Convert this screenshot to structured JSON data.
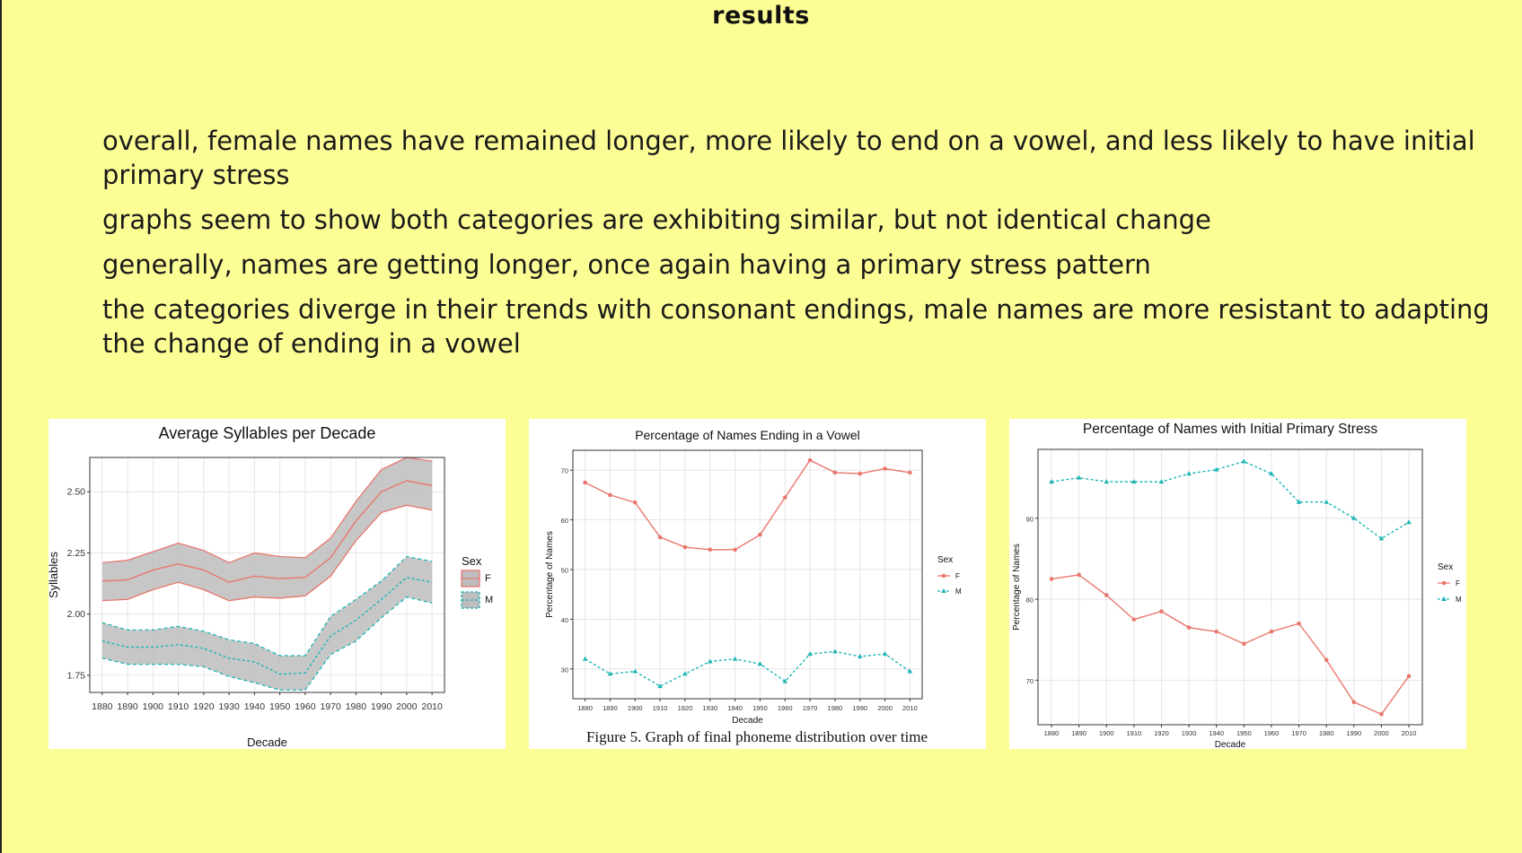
{
  "slide": {
    "title": "results",
    "bullets": [
      "overall, female names have remained longer, more likely to end on a vowel, and less likely to have initial primary stress",
      "graphs seem to show both categories are exhibiting similar, but not identical change",
      "generally, names are getting longer, once again having a primary stress pattern",
      "the categories diverge in their trends with consonant endings, male names are more resistant to adapting the change of ending in a vowel"
    ]
  },
  "colors": {
    "female": "#E8776E",
    "male": "#1EB5B5",
    "band": "#BDBDBD",
    "background": "#FDFD96"
  },
  "chart_data": [
    {
      "type": "line",
      "title": "Average Syllables per Decade",
      "xlabel": "Decade",
      "ylabel": "Syllables",
      "x": [
        1880,
        1890,
        1900,
        1910,
        1920,
        1930,
        1940,
        1950,
        1960,
        1970,
        1980,
        1990,
        2000,
        2010
      ],
      "ylim": [
        1.68,
        2.64
      ],
      "yticks": [
        1.75,
        2.0,
        2.25,
        2.5
      ],
      "ytick_labels": [
        "1.75",
        "2.00",
        "2.25",
        "2.50"
      ],
      "grid": true,
      "legend": {
        "title": "Sex",
        "position": "right"
      },
      "series": [
        {
          "name": "F",
          "style": "solid",
          "marker": "none",
          "values": [
            2.135,
            2.14,
            2.18,
            2.205,
            2.18,
            2.13,
            2.155,
            2.145,
            2.15,
            2.23,
            2.38,
            2.5,
            2.545,
            2.525
          ],
          "upper": [
            2.21,
            2.22,
            2.255,
            2.29,
            2.26,
            2.21,
            2.25,
            2.235,
            2.23,
            2.31,
            2.46,
            2.59,
            2.64,
            2.625
          ],
          "lower": [
            2.055,
            2.06,
            2.1,
            2.13,
            2.1,
            2.055,
            2.07,
            2.065,
            2.075,
            2.155,
            2.3,
            2.415,
            2.445,
            2.425
          ]
        },
        {
          "name": "M",
          "style": "dashed",
          "marker": "none",
          "values": [
            1.89,
            1.865,
            1.865,
            1.875,
            1.86,
            1.82,
            1.805,
            1.755,
            1.76,
            1.91,
            1.975,
            2.06,
            2.15,
            2.13
          ],
          "upper": [
            1.965,
            1.935,
            1.935,
            1.95,
            1.93,
            1.895,
            1.88,
            1.83,
            1.83,
            1.99,
            2.06,
            2.135,
            2.235,
            2.215
          ],
          "lower": [
            1.82,
            1.795,
            1.795,
            1.795,
            1.785,
            1.745,
            1.72,
            1.69,
            1.69,
            1.835,
            1.89,
            1.985,
            2.07,
            2.045
          ]
        }
      ]
    },
    {
      "type": "line",
      "title": "Percentage of Names Ending in a Vowel",
      "xlabel": "Decade",
      "ylabel": "Percentage of Names",
      "caption": "Figure 5. Graph of final phoneme distribution over time",
      "x": [
        1880,
        1890,
        1900,
        1910,
        1920,
        1930,
        1940,
        1950,
        1960,
        1970,
        1980,
        1990,
        2000,
        2010
      ],
      "ylim": [
        24,
        74
      ],
      "yticks": [
        30,
        40,
        50,
        60,
        70
      ],
      "ytick_labels": [
        "30",
        "40",
        "50",
        "60",
        "70"
      ],
      "grid": true,
      "legend": {
        "title": "Sex",
        "position": "right"
      },
      "series": [
        {
          "name": "F",
          "style": "solid",
          "marker": "circle",
          "values": [
            67.5,
            65,
            63.5,
            56.5,
            54.5,
            54,
            54,
            57,
            64.5,
            72,
            69.5,
            69.3,
            70.3,
            69.5
          ]
        },
        {
          "name": "M",
          "style": "dashed",
          "marker": "triangle",
          "values": [
            32,
            29,
            29.5,
            26.5,
            29,
            31.5,
            32,
            31,
            27.5,
            33,
            33.5,
            32.5,
            33,
            29.5
          ]
        }
      ]
    },
    {
      "type": "line",
      "title": "Percentage of Names with Initial Primary Stress",
      "xlabel": "Decade",
      "ylabel": "Percentage of Names",
      "x": [
        1880,
        1890,
        1900,
        1910,
        1920,
        1930,
        1940,
        1950,
        1960,
        1970,
        1980,
        1990,
        2000,
        2010
      ],
      "ylim": [
        64.5,
        98.5
      ],
      "yticks": [
        70,
        80,
        90
      ],
      "ytick_labels": [
        "70",
        "80",
        "90"
      ],
      "grid": true,
      "legend": {
        "title": "Sex",
        "position": "right"
      },
      "series": [
        {
          "name": "F",
          "style": "solid",
          "marker": "circle",
          "values": [
            82.5,
            83,
            80.5,
            77.5,
            78.5,
            76.5,
            76,
            74.5,
            76,
            77,
            72.5,
            67.3,
            65.8,
            70.5
          ]
        },
        {
          "name": "M",
          "style": "dashed",
          "marker": "triangle",
          "values": [
            94.5,
            95,
            94.5,
            94.5,
            94.5,
            95.5,
            96,
            97,
            95.5,
            92,
            92,
            90,
            87.5,
            89.5
          ]
        }
      ]
    }
  ]
}
